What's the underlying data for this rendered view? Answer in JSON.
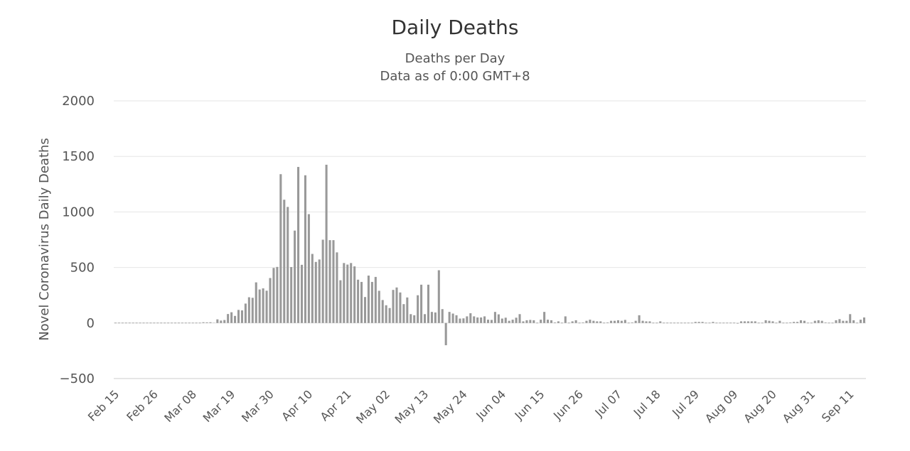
{
  "chart_data": {
    "type": "bar",
    "title": "Daily Deaths",
    "subtitle": "Deaths per Day",
    "subtitle2": "Data as of 0:00 GMT+8",
    "ylabel": "Novel Coronavirus Daily Deaths",
    "ylim": [
      -500,
      2000
    ],
    "yticks": [
      -500,
      0,
      500,
      1000,
      1500,
      2000
    ],
    "xtick_labels": [
      "Feb 15",
      "Feb 26",
      "Mar 08",
      "Mar 19",
      "Mar 30",
      "Apr 10",
      "Apr 21",
      "May 02",
      "May 13",
      "May 24",
      "Jun 04",
      "Jun 15",
      "Jun 26",
      "Jul 07",
      "Jul 18",
      "Jul 29",
      "Aug 09",
      "Aug 20",
      "Aug 31",
      "Sep 11"
    ],
    "start_date": "Feb 15",
    "bar_color": "#999999",
    "grid": true,
    "values": [
      0,
      0,
      0,
      0,
      0,
      0,
      0,
      0,
      0,
      0,
      0,
      0,
      0,
      0,
      0,
      0,
      0,
      0,
      0,
      0,
      0,
      0,
      0,
      0,
      0,
      7,
      6,
      7,
      2,
      33,
      22,
      27,
      81,
      97,
      64,
      118,
      114,
      175,
      232,
      227,
      366,
      302,
      312,
      291,
      405,
      496,
      505,
      1340,
      1110,
      1045,
      504,
      832,
      1405,
      524,
      1330,
      980,
      622,
      550,
      572,
      750,
      1425,
      746,
      746,
      636,
      385,
      540,
      526,
      540,
      510,
      390,
      370,
      234,
      427,
      370,
      415,
      290,
      207,
      160,
      135,
      298,
      320,
      275,
      170,
      230,
      80,
      70,
      250,
      345,
      80,
      345,
      100,
      95,
      475,
      125,
      -200,
      100,
      85,
      70,
      40,
      42,
      60,
      88,
      60,
      50,
      50,
      60,
      30,
      28,
      100,
      78,
      40,
      48,
      20,
      30,
      48,
      80,
      15,
      25,
      28,
      25,
      0,
      30,
      100,
      30,
      25,
      5,
      15,
      0,
      60,
      0,
      15,
      25,
      0,
      5,
      20,
      30,
      20,
      15,
      15,
      0,
      5,
      20,
      20,
      25,
      20,
      28,
      0,
      5,
      20,
      70,
      20,
      15,
      15,
      0,
      0,
      15,
      0,
      0,
      0,
      0,
      0,
      0,
      0,
      0,
      0,
      10,
      10,
      10,
      0,
      0,
      10,
      0,
      0,
      0,
      0,
      0,
      0,
      -5,
      15,
      15,
      15,
      15,
      15,
      0,
      0,
      25,
      20,
      15,
      0,
      20,
      0,
      0,
      5,
      10,
      10,
      25,
      20,
      0,
      0,
      20,
      25,
      20,
      5,
      0,
      0,
      25,
      35,
      20,
      20,
      80,
      25,
      0,
      30,
      50
    ]
  }
}
